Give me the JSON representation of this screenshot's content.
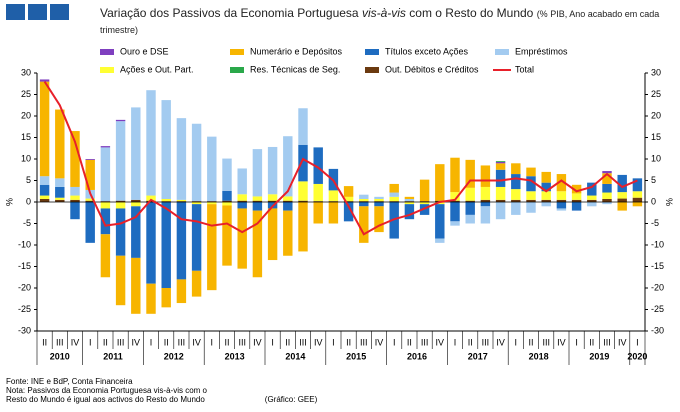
{
  "chart_data": {
    "type": "bar",
    "title_parts": [
      "Variação dos Passivos da Economia Portuguesa ",
      "vis-à-vis",
      " com o Resto do Mundo"
    ],
    "subtitle": "(% PIB, Ano acabado em cada trimestre)",
    "ylabel": "%",
    "y2label": "%",
    "stacked": true,
    "groups": [
      {
        "label": "2010",
        "categories": [
          "II",
          "III",
          "IV"
        ]
      },
      {
        "label": "2011",
        "categories": [
          "I",
          "II",
          "III",
          "IV"
        ]
      },
      {
        "label": "2012",
        "categories": [
          "I",
          "II",
          "III",
          "IV"
        ]
      },
      {
        "label": "2013",
        "categories": [
          "I",
          "II",
          "III",
          "IV"
        ]
      },
      {
        "label": "2014",
        "categories": [
          "I",
          "II",
          "III",
          "IV"
        ]
      },
      {
        "label": "2015",
        "categories": [
          "I",
          "II",
          "III",
          "IV"
        ]
      },
      {
        "label": "2016",
        "categories": [
          "I",
          "II",
          "III",
          "IV"
        ]
      },
      {
        "label": "2017",
        "categories": [
          "I",
          "II",
          "III",
          "IV"
        ]
      },
      {
        "label": "2018",
        "categories": [
          "I",
          "II",
          "III",
          "IV"
        ]
      },
      {
        "label": "2019",
        "categories": [
          "I",
          "II",
          "III",
          "IV"
        ]
      },
      {
        "label": "2020",
        "categories": [
          "I"
        ]
      }
    ],
    "ylim": [
      -30,
      30
    ],
    "yticks": [
      -30,
      -25,
      -20,
      -15,
      -10,
      -5,
      0,
      5,
      10,
      15,
      20,
      25,
      30
    ],
    "y2lim": [
      -30,
      30
    ],
    "y2ticks": [
      -30,
      -25,
      -20,
      -15,
      -10,
      -5,
      0,
      5,
      10,
      15,
      20,
      25,
      30
    ],
    "series": [
      {
        "name": "Ouro e DSE",
        "color": "#7f3fbf",
        "values": [
          0.5,
          0,
          0,
          0.2,
          0.3,
          0.3,
          0,
          0,
          0,
          0,
          0,
          0,
          0,
          0,
          0,
          0,
          0,
          0,
          0,
          0,
          0,
          0,
          0,
          0,
          0,
          0,
          0,
          0,
          0,
          0,
          0.3,
          0,
          0,
          0,
          0,
          0,
          0,
          0.5,
          0,
          0
        ]
      },
      {
        "name": "Numerário e Depósitos",
        "color": "#f7b500",
        "values": [
          22,
          16,
          13,
          7,
          -10,
          -11.5,
          -13,
          -7,
          -4.5,
          -5.5,
          -6,
          -20,
          -14,
          -14,
          -15.5,
          -12,
          -10.5,
          -11.5,
          -5,
          -5,
          2.5,
          -8.5,
          -6,
          2,
          0.5,
          5,
          8.5,
          8,
          6.5,
          5,
          1.5,
          2.5,
          2,
          2.5,
          4,
          2,
          0,
          2.5,
          -2,
          -1
        ]
      },
      {
        "name": "Títulos exceto Ações",
        "color": "#1e6cc0",
        "values": [
          2.5,
          2.5,
          -4,
          -9.5,
          -6,
          -11,
          -12,
          -19,
          -20,
          -18,
          -15.5,
          0,
          2.3,
          -1.5,
          -2,
          -1.5,
          -2,
          8.5,
          8.5,
          5,
          -4.5,
          -1,
          -1,
          -8.5,
          -3.5,
          -2.5,
          -8,
          -4.5,
          -3,
          -1,
          4,
          3.5,
          3.5,
          2,
          -1.5,
          -2,
          3,
          2,
          4,
          3
        ]
      },
      {
        "name": "Empréstimos",
        "color": "#a3cbf0",
        "values": [
          2,
          2,
          2,
          2,
          12.5,
          18.5,
          21.5,
          24.5,
          23,
          19,
          18,
          15,
          7.5,
          6,
          11,
          11,
          14,
          8.5,
          0,
          0,
          0,
          1,
          0.5,
          1,
          0.5,
          0,
          -1,
          -1,
          -2,
          -4,
          -4,
          -3,
          -2.5,
          -1,
          -0.5,
          0,
          -1,
          -0.5,
          0,
          0
        ]
      },
      {
        "name": "Ações e Out. Part.",
        "color": "#ffff33",
        "values": [
          0.8,
          0.5,
          1,
          0.5,
          -1.5,
          -1.5,
          -1,
          1.2,
          0.5,
          0.3,
          -0.5,
          -0.5,
          -0.8,
          1.5,
          1,
          1.5,
          1,
          4.5,
          4,
          2.5,
          1,
          0.5,
          0.5,
          1,
          -0.5,
          -0.5,
          -0.5,
          2,
          3,
          3,
          3,
          2.5,
          2,
          2,
          2,
          1.5,
          1,
          1.5,
          1.5,
          1.5
        ]
      },
      {
        "name": "Res. Técnicas de Seg.",
        "color": "#2aa84a",
        "values": [
          0,
          0,
          0,
          0,
          0,
          0,
          0,
          0,
          0,
          0,
          0,
          0,
          0,
          0,
          0,
          0,
          0,
          0,
          0,
          0,
          0,
          0,
          0,
          0,
          0,
          0,
          0,
          0,
          0,
          0,
          0.2,
          0,
          0,
          0,
          0,
          0,
          0,
          0,
          0,
          0
        ]
      },
      {
        "name": "Out. Débitos e Créditos",
        "color": "#6b3a10",
        "values": [
          0.7,
          0.5,
          0.5,
          0.3,
          0.2,
          0.3,
          0.5,
          0.3,
          0.2,
          0.2,
          0.2,
          0.2,
          0.3,
          0.3,
          0.3,
          0.3,
          0.3,
          0.3,
          0.2,
          0.2,
          0.2,
          0.2,
          0.2,
          0.2,
          0.2,
          0.2,
          0.3,
          0.3,
          0.3,
          0.5,
          0.5,
          0.5,
          0.5,
          0.5,
          0.5,
          0.5,
          0.5,
          0.7,
          0.8,
          1
        ]
      },
      {
        "name": "Total",
        "color": "#e8202a",
        "type": "line",
        "values": [
          28,
          22.5,
          14,
          2,
          -5.5,
          -5,
          -3.5,
          0.5,
          -1.5,
          -4,
          -4.5,
          -5.5,
          -5,
          -7,
          -5,
          -1,
          2.5,
          10,
          8,
          5,
          -1,
          -7.5,
          -5.5,
          -4,
          -3,
          -1.5,
          0,
          0.5,
          5,
          5,
          5,
          5.5,
          5,
          2.5,
          5,
          2.5,
          3.5,
          6.5,
          3.5,
          5
        ]
      }
    ],
    "notes": [
      "Fonte: INE e BdP, Conta Financeira",
      "Nota: Passivos da Economia Portuguesa vis-à-vis com o",
      "Resto do Mundo é igual aos activos do Resto do Mundo"
    ],
    "credit": "(Gráfico: GEE)"
  }
}
